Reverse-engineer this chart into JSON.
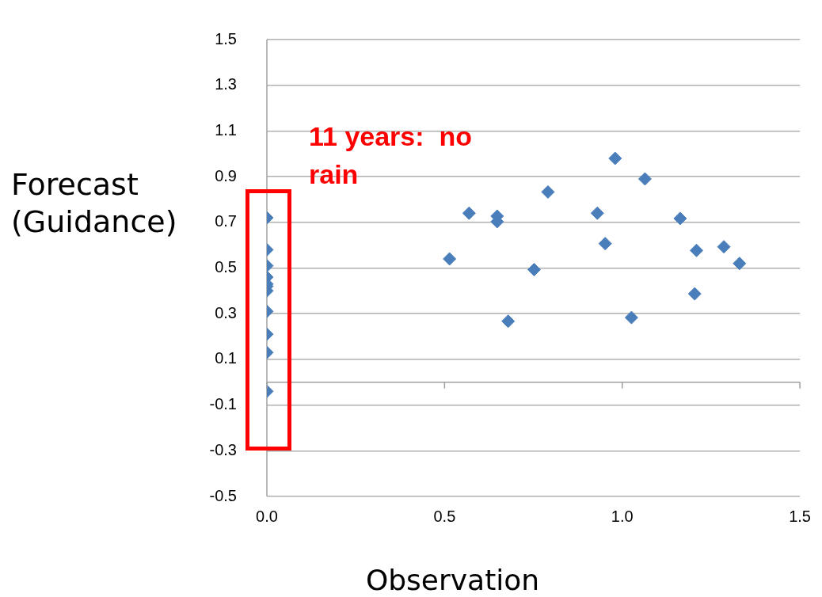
{
  "chart_data": {
    "type": "scatter",
    "xlabel": "Observation",
    "ylabel": "Forecast\n(Guidance)",
    "annotations": [
      "11 years:  no rain"
    ],
    "series": [
      {
        "color": "#4a7ebb",
        "x": [
          0,
          0,
          0,
          0,
          0,
          0,
          0,
          0,
          0,
          0,
          0,
          0.514,
          0.569,
          0.648,
          0.648,
          0.679,
          0.752,
          0.791,
          0.93,
          0.952,
          0.98,
          1.064,
          1.163,
          1.209,
          1.204,
          1.286,
          1.33,
          1.026
        ],
        "values": [
          0.72,
          0.58,
          0.51,
          0.46,
          0.43,
          0.42,
          0.4,
          0.31,
          0.21,
          0.13,
          -0.04,
          0.54,
          0.74,
          0.727,
          0.703,
          0.267,
          0.493,
          0.833,
          0.74,
          0.607,
          0.98,
          0.89,
          0.717,
          0.577,
          0.387,
          0.593,
          0.52,
          0.283
        ]
      }
    ],
    "xlim": [
      0,
      1.5
    ],
    "xticks": [
      {
        "value": 0,
        "label": "0.0"
      },
      0.5,
      {
        "value": 1,
        "label": "1.0"
      },
      1.5
    ],
    "ylim": [
      -0.5,
      1.5
    ],
    "yticks": [
      -0.5,
      -0.3,
      -0.1,
      0.1,
      0.3,
      0.5,
      0.7,
      0.9,
      1.1,
      1.3,
      1.5
    ],
    "grid": "y",
    "legend": false,
    "marker": "diamond"
  }
}
